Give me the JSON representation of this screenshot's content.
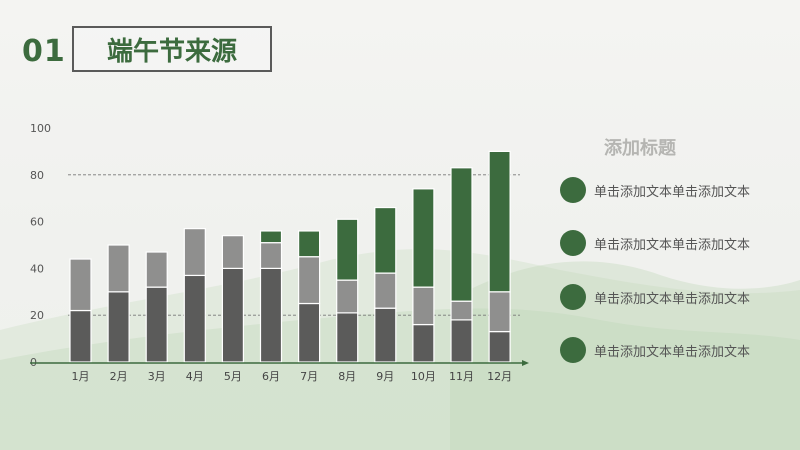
{
  "header": {
    "number": "01",
    "title": "端午节来源"
  },
  "legend": {
    "title": "添加标题",
    "items": [
      "单击添加文本单击添加文本",
      "单击添加文本单击添加文本",
      "单击添加文本单击添加文本",
      "单击添加文本单击添加文本"
    ]
  },
  "colors": {
    "dark": "#5b5b5a",
    "mid": "#8f8f8e",
    "green": "#3c6b3e",
    "accent": "#3c6b3e"
  },
  "chart_data": {
    "type": "bar",
    "stacked": true,
    "categories": [
      "1月",
      "2月",
      "3月",
      "4月",
      "5月",
      "6月",
      "7月",
      "8月",
      "9月",
      "10月",
      "11月",
      "12月"
    ],
    "series": [
      {
        "values": [
          22,
          30,
          32,
          37,
          40,
          40,
          25,
          21,
          23,
          16,
          18,
          13
        ]
      },
      {
        "values": [
          22,
          20,
          15,
          20,
          14,
          11,
          20,
          14,
          15,
          16,
          8,
          17
        ]
      },
      {
        "values": [
          0,
          0,
          0,
          0,
          0,
          5,
          11,
          26,
          28,
          42,
          57,
          60
        ]
      }
    ],
    "ylim": [
      0,
      100
    ],
    "yticks": [
      0,
      20,
      40,
      60,
      80,
      100
    ],
    "grid": "dashed at 20 and 80"
  }
}
